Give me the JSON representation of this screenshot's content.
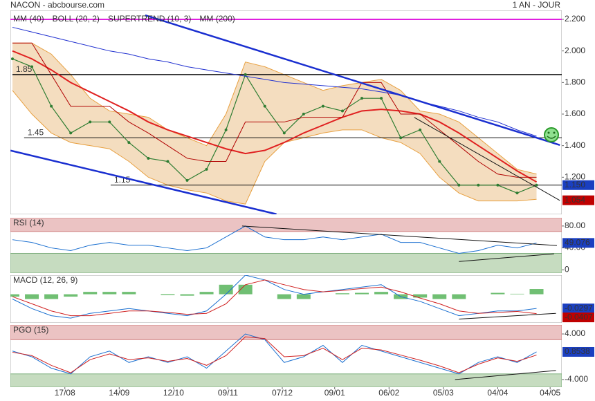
{
  "header": {
    "title": "NACON - abcbourse.com",
    "period": "1 AN - JOUR"
  },
  "chart_data": [
    {
      "type": "line",
      "xlim": [
        0,
        28.3
      ],
      "xticks": [
        {
          "value": 2.7,
          "label": "17/08"
        },
        {
          "value": 5.5,
          "label": "14/09"
        },
        {
          "value": 8.3,
          "label": "12/10"
        },
        {
          "value": 11.1,
          "label": "09/11"
        },
        {
          "value": 13.9,
          "label": "07/12"
        },
        {
          "value": 16.6,
          "label": "09/01"
        },
        {
          "value": 19.4,
          "label": "06/02"
        },
        {
          "value": 22.2,
          "label": "05/03"
        },
        {
          "value": 25.0,
          "label": "04/04"
        },
        {
          "value": 27.7,
          "label": "04/05"
        }
      ],
      "ylim": [
        0.965,
        2.257
      ],
      "yticks": [
        {
          "value": 2.2,
          "label": "2.200"
        },
        {
          "value": 2.0,
          "label": "2.000"
        },
        {
          "value": 1.8,
          "label": "1.800"
        },
        {
          "value": 1.6,
          "label": "1.600"
        },
        {
          "value": 1.4,
          "label": "1.400"
        },
        {
          "value": 1.2,
          "label": "1.200"
        }
      ],
      "price": {
        "color": "#2e7d32",
        "values": [
          1.95,
          1.9,
          1.65,
          1.48,
          1.55,
          1.55,
          1.42,
          1.32,
          1.3,
          1.18,
          1.25,
          1.5,
          1.85,
          1.65,
          1.48,
          1.6,
          1.65,
          1.62,
          1.7,
          1.7,
          1.45,
          1.5,
          1.3,
          1.15,
          1.15,
          1.15,
          1.1,
          1.15
        ]
      },
      "series": [
        {
          "name": "MM (40)",
          "color": "#e02020",
          "width": 2,
          "values": [
            2.0,
            1.95,
            1.88,
            1.8,
            1.74,
            1.68,
            1.62,
            1.55,
            1.5,
            1.46,
            1.42,
            1.38,
            1.35,
            1.37,
            1.42,
            1.48,
            1.53,
            1.58,
            1.62,
            1.63,
            1.62,
            1.6,
            1.55,
            1.48,
            1.4,
            1.32,
            1.24,
            1.17
          ]
        },
        {
          "name": "BOLL (20, 2)",
          "color": "#e8a040",
          "fill": "#f3d9b8",
          "upper": [
            2.05,
            2.05,
            1.98,
            1.85,
            1.7,
            1.62,
            1.6,
            1.58,
            1.5,
            1.45,
            1.4,
            1.6,
            1.93,
            1.9,
            1.85,
            1.8,
            1.75,
            1.78,
            1.8,
            1.82,
            1.75,
            1.62,
            1.6,
            1.55,
            1.45,
            1.35,
            1.25,
            1.22
          ],
          "lower": [
            1.75,
            1.6,
            1.48,
            1.42,
            1.4,
            1.38,
            1.3,
            1.2,
            1.15,
            1.12,
            1.1,
            1.05,
            1.03,
            1.3,
            1.42,
            1.45,
            1.48,
            1.5,
            1.5,
            1.45,
            1.42,
            1.35,
            1.2,
            1.1,
            1.05,
            1.05,
            1.05,
            1.06
          ]
        },
        {
          "name": "SUPERTREND (10, 3)",
          "color": "#b00000",
          "width": 1,
          "values": [
            2.05,
            2.05,
            1.85,
            1.65,
            1.65,
            1.65,
            1.55,
            1.48,
            1.4,
            1.32,
            1.3,
            1.3,
            1.55,
            1.55,
            1.55,
            1.58,
            1.58,
            1.58,
            1.8,
            1.8,
            1.6,
            1.6,
            1.5,
            1.4,
            1.3,
            1.22,
            1.2,
            1.2
          ]
        },
        {
          "name": "MM (200)",
          "color": "#2030d0",
          "width": 1,
          "values": [
            2.15,
            2.12,
            2.09,
            2.06,
            2.03,
            2.0,
            1.98,
            1.95,
            1.93,
            1.9,
            1.88,
            1.86,
            1.84,
            1.82,
            1.8,
            1.79,
            1.78,
            1.77,
            1.76,
            1.74,
            1.72,
            1.68,
            1.65,
            1.62,
            1.58,
            1.55,
            1.5,
            1.46
          ]
        }
      ],
      "top_line": {
        "value": 2.2,
        "color": "#e020e0"
      },
      "levels": [
        {
          "value": 1.85,
          "start": 0
        },
        {
          "value": 1.45,
          "start": 0.6
        },
        {
          "value": 1.15,
          "start": 5.06
        }
      ],
      "trendlines": [
        {
          "color": "#1a2fd0",
          "width": 2.5,
          "x": [
            6.84,
            28.2
          ],
          "y": [
            2.226,
            1.404
          ]
        },
        {
          "color": "#1a2fd0",
          "width": 2.5,
          "x": [
            -0.1,
            13.6
          ],
          "y": [
            1.369,
            0.966
          ]
        },
        {
          "color": "#111111",
          "width": 1,
          "x": [
            20.7,
            28.2
          ],
          "y": [
            1.579,
            1.053
          ]
        }
      ],
      "last_labels": [
        {
          "value": 1.15,
          "label": "1.150",
          "color": "#1a3fc0"
        },
        {
          "value": 1.054,
          "label": "1.054",
          "color": "#c00000"
        }
      ]
    },
    {
      "type": "line",
      "title": "RSI (14)",
      "xlim": [
        0,
        28.3
      ],
      "ylim": [
        -6,
        95
      ],
      "yticks": [
        {
          "value": 80,
          "label": "80.00"
        },
        {
          "value": 40,
          "label": "40.00"
        },
        0
      ],
      "zones": [
        30,
        70
      ],
      "series": [
        {
          "color": "#1a6fd0",
          "width": 1,
          "values": [
            55,
            50,
            40,
            35,
            45,
            50,
            45,
            45,
            40,
            35,
            40,
            60,
            80,
            60,
            55,
            55,
            60,
            55,
            60,
            65,
            50,
            50,
            40,
            30,
            35,
            45,
            40,
            49
          ]
        }
      ],
      "trendlines": [
        {
          "color": "#111111",
          "width": 1,
          "x": [
            11.83,
            28.05
          ],
          "y": [
            80,
            44.4
          ]
        },
        {
          "color": "#111111",
          "width": 1,
          "x": [
            23.0,
            27.9
          ],
          "y": [
            15.2,
            29.2
          ]
        }
      ],
      "last_labels": [
        {
          "value": 49.076,
          "color": "#1a3fc0"
        }
      ]
    },
    {
      "type": "macd",
      "title": "MACD (12, 26, 9)",
      "xlim": [
        0,
        28.3
      ],
      "ylim": [
        -0.06,
        0.04
      ],
      "histogram": {
        "color": "#4caf50",
        "values": [
          -0.005,
          -0.01,
          -0.01,
          -0.005,
          0.005,
          0.005,
          0.005,
          0,
          -0.002,
          -0.003,
          0.005,
          0.02,
          0.02,
          0,
          -0.01,
          -0.01,
          0,
          0.002,
          0.003,
          0.005,
          -0.01,
          -0.007,
          -0.01,
          -0.01,
          0,
          0.003,
          0.001,
          0.011
        ]
      },
      "series": [
        {
          "color": "#1a6fd0",
          "width": 1,
          "values": [
            -0.01,
            -0.03,
            -0.045,
            -0.05,
            -0.04,
            -0.035,
            -0.03,
            -0.035,
            -0.04,
            -0.045,
            -0.035,
            0.0,
            0.04,
            0.03,
            0.01,
            0.0,
            0.005,
            0.01,
            0.015,
            0.02,
            -0.005,
            -0.015,
            -0.03,
            -0.045,
            -0.04,
            -0.035,
            -0.035,
            -0.0297
          ]
        },
        {
          "color": "#d02020",
          "width": 1,
          "values": [
            -0.005,
            -0.02,
            -0.035,
            -0.045,
            -0.045,
            -0.04,
            -0.035,
            -0.035,
            -0.038,
            -0.042,
            -0.04,
            -0.02,
            0.02,
            0.03,
            0.02,
            0.01,
            0.005,
            0.008,
            0.012,
            0.015,
            0.005,
            -0.008,
            -0.02,
            -0.035,
            -0.04,
            -0.038,
            -0.036,
            -0.0407
          ]
        }
      ],
      "trendlines": [
        {
          "color": "#111111",
          "width": 1,
          "x": [
            23.0,
            28.0
          ],
          "y": [
            -0.052,
            -0.04
          ]
        }
      ],
      "last_labels": [
        {
          "value": -0.0297,
          "color": "#1a3fc0"
        },
        {
          "value": -0.0407,
          "color": "#c00000"
        }
      ]
    },
    {
      "type": "line",
      "title": "PGO (15)",
      "xlim": [
        0,
        28.3
      ],
      "ylim": [
        -5.33,
        5.58
      ],
      "yticks": [
        {
          "value": 4,
          "label": "4.000"
        },
        {
          "value": -4,
          "label": "-4.000"
        }
      ],
      "zones": [
        -3,
        3
      ],
      "series": [
        {
          "color": "#1a6fd0",
          "width": 1,
          "values": [
            1,
            0,
            -2,
            -3,
            0,
            1,
            -1,
            0,
            -1,
            0,
            -2,
            1,
            4,
            3,
            -1,
            0,
            2,
            -1,
            2,
            1,
            0,
            -1,
            -2,
            -3,
            -1,
            0,
            -1,
            0.8538
          ]
        },
        {
          "color": "#d02020",
          "width": 1,
          "values": [
            0.8,
            0.2,
            -1.5,
            -2.8,
            -0.5,
            0.5,
            -0.5,
            -0.2,
            -0.8,
            -0.3,
            -1.5,
            0.2,
            3.5,
            3.2,
            0,
            0.2,
            1.5,
            -0.5,
            1.5,
            1.2,
            0.3,
            -0.6,
            -1.6,
            -2.8,
            -1.3,
            -0.2,
            -0.8,
            0.3
          ]
        }
      ],
      "trendlines": [
        {
          "color": "#111111",
          "width": 1,
          "x": [
            22.8,
            28.0
          ],
          "y": [
            -4.0,
            -2.4
          ]
        }
      ],
      "last_labels": [
        {
          "value": 0.8538,
          "color": "#1a3fc0"
        }
      ]
    }
  ]
}
